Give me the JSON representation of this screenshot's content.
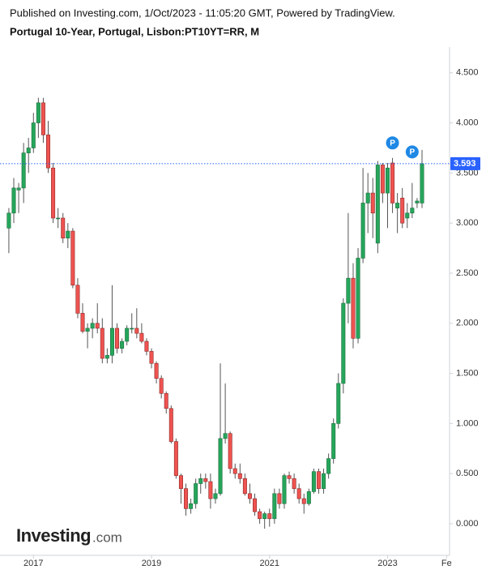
{
  "chart_data": {
    "type": "candlestick",
    "source": "Published on Investing.com, 1/Oct/2023 - 11:05:20 GMT, Powered by TradingView.",
    "title": "Portugal 10-Year, Portugal, Lisbon:PT10YT=RR, M",
    "watermark": "Investing",
    "watermark_suffix": ".com",
    "up_color": "#26a65b",
    "down_color": "#ef5350",
    "x": [
      0,
      1,
      2,
      3,
      4,
      5,
      6,
      7,
      8,
      9,
      10,
      11,
      12,
      13,
      14,
      15,
      16,
      17,
      18,
      19,
      20,
      21,
      22,
      23,
      24,
      25,
      26,
      27,
      28,
      29,
      30,
      31,
      32,
      33,
      34,
      35,
      36,
      37,
      38,
      39,
      40,
      41,
      42,
      43,
      44,
      45,
      46,
      47,
      48,
      49,
      50,
      51,
      52,
      53,
      54,
      55,
      56,
      57,
      58,
      59,
      60,
      61,
      62,
      63,
      64,
      65,
      66,
      67,
      68,
      69,
      70,
      71,
      72,
      73,
      74,
      75,
      76,
      77,
      78,
      79,
      80,
      81,
      82,
      83,
      84
    ],
    "open": [
      2.95,
      3.1,
      3.33,
      3.35,
      3.7,
      3.75,
      4.0,
      4.2,
      3.88,
      3.55,
      3.05,
      3.05,
      2.85,
      2.92,
      2.38,
      2.1,
      1.92,
      1.95,
      2.0,
      1.95,
      1.65,
      1.68,
      1.95,
      1.75,
      1.82,
      1.95,
      1.95,
      1.9,
      1.82,
      1.72,
      1.6,
      1.45,
      1.3,
      1.15,
      0.82,
      0.48,
      0.35,
      0.15,
      0.2,
      0.4,
      0.45,
      0.42,
      0.25,
      0.3,
      0.85,
      0.9,
      0.55,
      0.5,
      0.45,
      0.3,
      0.25,
      0.12,
      0.05,
      0.1,
      0.05,
      0.3,
      0.2,
      0.48,
      0.45,
      0.35,
      0.25,
      0.2,
      0.32,
      0.52,
      0.35,
      0.5,
      0.65,
      1.0,
      1.4,
      2.2,
      2.45,
      1.85,
      2.65,
      3.2,
      3.3,
      2.8,
      3.58,
      3.3,
      3.6,
      3.15,
      3.25,
      3.05,
      3.1,
      3.2,
      3.2
    ],
    "high": [
      3.15,
      3.45,
      3.4,
      3.8,
      3.85,
      4.1,
      4.25,
      4.25,
      4.02,
      3.6,
      3.15,
      3.1,
      3.0,
      2.95,
      2.45,
      2.2,
      2.0,
      2.05,
      2.2,
      2.05,
      1.75,
      2.38,
      2.0,
      1.85,
      1.98,
      2.1,
      2.15,
      2.0,
      1.85,
      1.75,
      1.62,
      1.48,
      1.32,
      1.18,
      0.85,
      0.5,
      0.4,
      0.25,
      0.45,
      0.5,
      0.5,
      0.5,
      0.35,
      1.6,
      1.4,
      0.92,
      0.6,
      0.6,
      0.5,
      0.4,
      0.3,
      0.15,
      0.12,
      0.15,
      0.35,
      0.35,
      0.5,
      0.52,
      0.5,
      0.4,
      0.3,
      0.35,
      0.55,
      0.55,
      0.55,
      0.7,
      1.05,
      1.5,
      2.25,
      3.1,
      2.6,
      2.75,
      3.55,
      3.5,
      3.45,
      3.62,
      3.6,
      3.6,
      3.65,
      3.3,
      3.35,
      3.2,
      3.4,
      3.25,
      3.73
    ],
    "low": [
      2.7,
      3.0,
      3.1,
      3.2,
      3.5,
      3.7,
      3.85,
      3.8,
      3.5,
      3.0,
      2.95,
      2.8,
      2.75,
      2.35,
      2.05,
      1.9,
      1.75,
      1.85,
      1.9,
      1.6,
      1.6,
      1.6,
      1.7,
      1.7,
      1.78,
      1.9,
      1.85,
      1.8,
      1.68,
      1.55,
      1.4,
      1.25,
      1.1,
      0.8,
      0.45,
      0.2,
      0.08,
      0.1,
      0.15,
      0.3,
      0.35,
      0.15,
      0.2,
      0.28,
      0.8,
      0.5,
      0.45,
      0.4,
      0.28,
      0.2,
      0.08,
      0.0,
      -0.05,
      -0.03,
      0.0,
      0.15,
      0.15,
      0.4,
      0.3,
      0.2,
      0.1,
      0.18,
      0.3,
      0.3,
      0.3,
      0.45,
      0.6,
      0.95,
      1.3,
      2.0,
      1.75,
      1.8,
      2.6,
      2.9,
      2.85,
      2.7,
      3.2,
      2.95,
      3.1,
      2.9,
      2.95,
      2.95,
      3.05,
      3.15,
      3.15
    ],
    "close": [
      3.1,
      3.35,
      3.35,
      3.7,
      3.75,
      4.0,
      4.2,
      3.88,
      3.55,
      3.05,
      3.05,
      2.85,
      2.92,
      2.38,
      2.1,
      1.92,
      1.95,
      2.0,
      1.95,
      1.65,
      1.68,
      1.95,
      1.75,
      1.82,
      1.95,
      1.95,
      1.9,
      1.82,
      1.72,
      1.6,
      1.45,
      1.3,
      1.15,
      0.82,
      0.48,
      0.35,
      0.15,
      0.2,
      0.4,
      0.45,
      0.42,
      0.25,
      0.3,
      0.85,
      0.9,
      0.55,
      0.5,
      0.45,
      0.3,
      0.25,
      0.12,
      0.05,
      0.1,
      0.05,
      0.3,
      0.2,
      0.48,
      0.45,
      0.35,
      0.25,
      0.2,
      0.32,
      0.52,
      0.35,
      0.5,
      0.65,
      1.0,
      1.4,
      2.2,
      2.45,
      1.85,
      2.65,
      3.2,
      3.3,
      3.1,
      3.58,
      3.3,
      3.55,
      3.2,
      3.2,
      3.0,
      3.1,
      3.15,
      3.22,
      3.593
    ],
    "last_price": {
      "value": 3.593,
      "label": "3.593",
      "color": "#2962ff"
    },
    "annotations": [
      {
        "x": 78,
        "y": 3.8,
        "text": "P"
      },
      {
        "x": 82,
        "y": 3.71,
        "text": "P"
      }
    ],
    "xlim": [
      -1.8,
      89.6
    ],
    "xticks": [
      {
        "value": 5,
        "label": "2017"
      },
      {
        "value": 29,
        "label": "2019"
      },
      {
        "value": 53,
        "label": "2021"
      },
      {
        "value": 77,
        "label": "2023"
      },
      {
        "value": 89,
        "label": "Fe"
      }
    ],
    "ylim": [
      -0.316,
      4.757
    ],
    "yticks": [
      {
        "value": 0,
        "label": "0.000"
      },
      {
        "value": 0.5,
        "label": "0.500"
      },
      {
        "value": 1,
        "label": "1.000"
      },
      {
        "value": 1.5,
        "label": "1.500"
      },
      {
        "value": 2,
        "label": "2.000"
      },
      {
        "value": 2.5,
        "label": "2.500"
      },
      {
        "value": 3,
        "label": "3.000"
      },
      {
        "value": 3.5,
        "label": "3.500"
      },
      {
        "value": 4,
        "label": "4.000"
      },
      {
        "value": 4.5,
        "label": "4.500"
      }
    ]
  }
}
